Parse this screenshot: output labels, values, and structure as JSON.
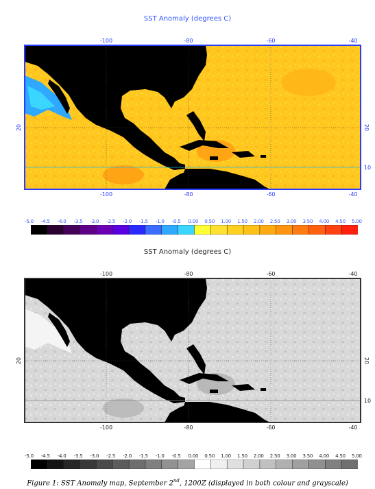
{
  "color_map": {
    "title": "SST Anomaly (degrees C)",
    "lon_ticks": [
      "-100",
      "-80",
      "-60",
      "-40"
    ],
    "lat_ticks": [
      "20",
      "10"
    ]
  },
  "gray_map": {
    "title": "SST Anomaly (degrees C)",
    "lon_ticks": [
      "-100",
      "-80",
      "-60",
      "-40"
    ],
    "lat_ticks": [
      "20",
      "10"
    ]
  },
  "colorbar_labels": [
    "-5.0",
    "-4.5",
    "-4.0",
    "-3.5",
    "-3.0",
    "-2.5",
    "-2.0",
    "-1.5",
    "-1.0",
    "-0.5",
    "0.00",
    "0.50",
    "1.00",
    "1.50",
    "2.00",
    "2.50",
    "3.00",
    "3.50",
    "4.00",
    "4.50",
    "5.00"
  ],
  "colors": {
    "color_bins": [
      "#000000",
      "#2a0033",
      "#45005a",
      "#5e0088",
      "#6c00b4",
      "#5a00e0",
      "#2a2aff",
      "#3a6cff",
      "#2fa8ff",
      "#3bd6ff",
      "#ffff33",
      "#ffe030",
      "#ffd020",
      "#ffc018",
      "#ffaa10",
      "#ff9410",
      "#ff7a10",
      "#ff6010",
      "#ff4010",
      "#ff2010"
    ],
    "gray_bins": [
      "#000000",
      "#141414",
      "#262626",
      "#383838",
      "#4a4a4a",
      "#5c5c5c",
      "#6e6e6e",
      "#808080",
      "#929292",
      "#a4a4a4",
      "#ffffff",
      "#f0f0f0",
      "#e0e0e0",
      "#d0d0d0",
      "#c0c0c0",
      "#b0b0b0",
      "#a0a0a0",
      "#909090",
      "#808080",
      "#707070"
    ],
    "land_color": "#000000",
    "ocean_color": "#ffcc22",
    "ocean_gray": "#dcdcdc",
    "title_color": "#3355ff"
  },
  "caption": {
    "prefix": "Figure 1: SST Anomaly map, September 2",
    "sup": "nd",
    "suffix": ", 1200Z (displayed in both colour and grayscale)"
  }
}
